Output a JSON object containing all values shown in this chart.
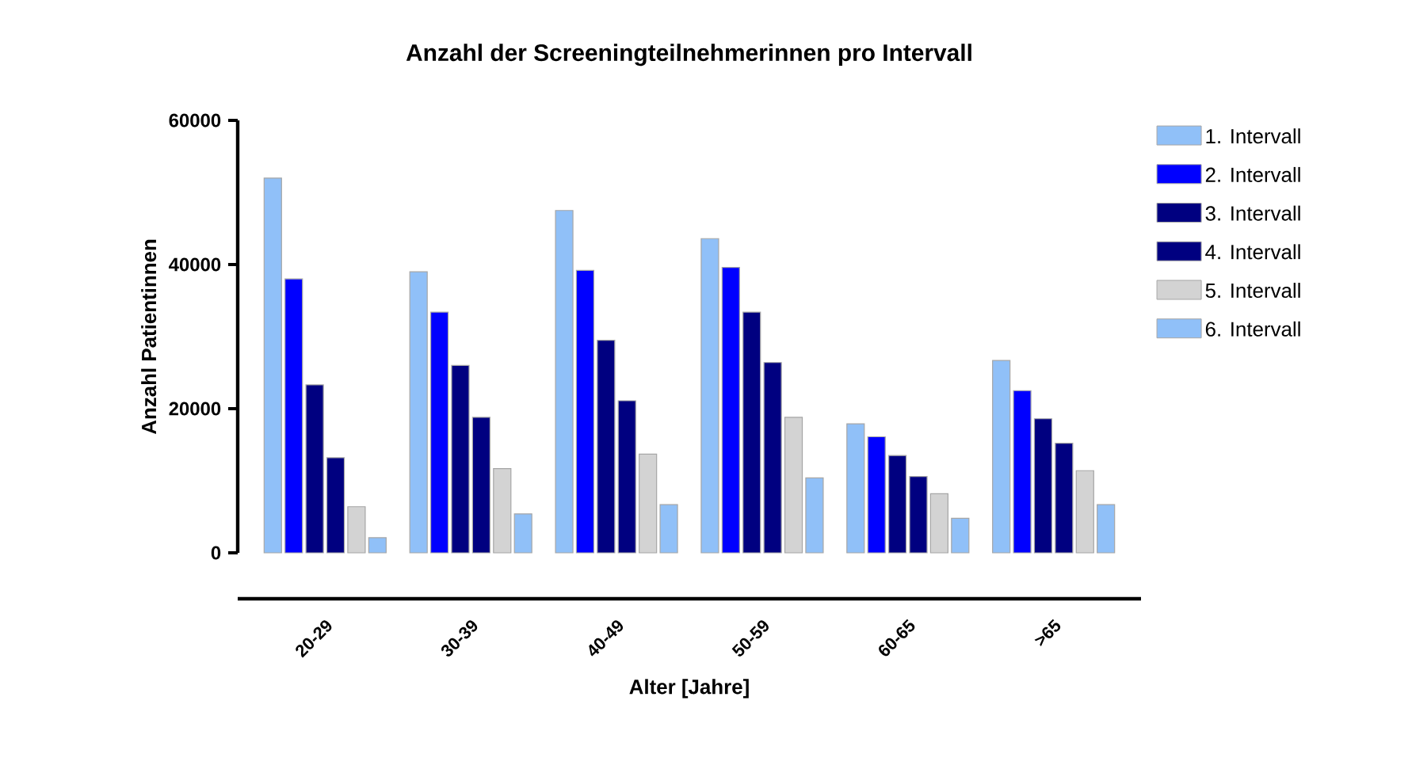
{
  "chart_data": {
    "type": "bar",
    "title": "Anzahl der Screeningteilnehmerinnen pro Intervall",
    "xlabel": "Alter [Jahre]",
    "ylabel": "Anzahl  Patientinnen",
    "categories": [
      "20-29",
      "30-39",
      "40-49",
      "50-59",
      "60-65",
      ">65"
    ],
    "series": [
      {
        "name": "1. Intervall",
        "color": "#90c0f8",
        "values": [
          52000,
          39000,
          47500,
          43600,
          17900,
          26700
        ]
      },
      {
        "name": "2. Intervall",
        "color": "#0000ff",
        "values": [
          38000,
          33400,
          39200,
          39600,
          16100,
          22500
        ]
      },
      {
        "name": "3. Intervall",
        "color": "#000080",
        "values": [
          23300,
          26000,
          29500,
          33400,
          13500,
          18600
        ]
      },
      {
        "name": "4. Intervall",
        "color": "#000080",
        "values": [
          13200,
          18800,
          21100,
          26400,
          10600,
          15200
        ]
      },
      {
        "name": "5. Intervall",
        "color": "#d3d3d3",
        "values": [
          6400,
          11700,
          13700,
          18800,
          8200,
          11400
        ]
      },
      {
        "name": "6. Intervall",
        "color": "#90c0f8",
        "values": [
          2100,
          5400,
          6700,
          10400,
          4800,
          6700
        ]
      }
    ],
    "ylim": [
      0,
      60000
    ],
    "yticks": [
      0,
      20000,
      40000,
      60000
    ],
    "legend": "right"
  }
}
